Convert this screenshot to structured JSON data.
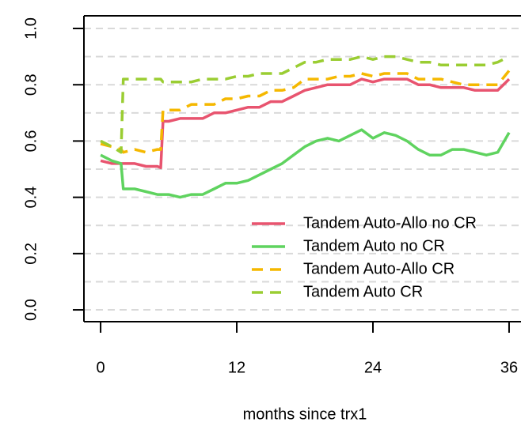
{
  "chart_data": {
    "type": "line",
    "x": [
      0,
      1,
      1.8,
      2,
      3,
      4,
      5,
      5.3,
      5.5,
      6,
      7,
      8,
      9,
      10,
      11,
      12,
      13,
      14,
      15,
      16,
      17,
      18,
      19,
      20,
      21,
      22,
      23,
      24,
      25,
      26,
      27,
      28,
      29,
      30,
      31,
      32,
      33,
      34,
      35,
      36
    ],
    "series": [
      {
        "name": "Tandem Auto-Allo no CR",
        "color": "#e8546f",
        "linestyle": "solid",
        "values": [
          0.53,
          0.52,
          0.52,
          0.52,
          0.52,
          0.51,
          0.51,
          0.505,
          0.67,
          0.67,
          0.68,
          0.68,
          0.68,
          0.7,
          0.7,
          0.71,
          0.72,
          0.72,
          0.74,
          0.74,
          0.76,
          0.78,
          0.79,
          0.8,
          0.8,
          0.8,
          0.82,
          0.81,
          0.82,
          0.82,
          0.82,
          0.8,
          0.8,
          0.79,
          0.79,
          0.79,
          0.78,
          0.78,
          0.78,
          0.82
        ]
      },
      {
        "name": "Tandem Auto no CR",
        "color": "#5fd35f",
        "linestyle": "solid",
        "values": [
          0.55,
          0.53,
          0.52,
          0.43,
          0.43,
          0.42,
          0.41,
          0.41,
          0.41,
          0.41,
          0.4,
          0.41,
          0.41,
          0.43,
          0.45,
          0.45,
          0.46,
          0.48,
          0.5,
          0.52,
          0.55,
          0.58,
          0.6,
          0.61,
          0.6,
          0.62,
          0.64,
          0.61,
          0.63,
          0.62,
          0.6,
          0.57,
          0.55,
          0.55,
          0.57,
          0.57,
          0.56,
          0.55,
          0.56,
          0.63
        ]
      },
      {
        "name": "Tandem Auto-Allo CR",
        "color": "#f5b800",
        "linestyle": "dashed",
        "values": [
          0.59,
          0.58,
          0.57,
          0.56,
          0.57,
          0.56,
          0.57,
          0.57,
          0.71,
          0.71,
          0.71,
          0.73,
          0.73,
          0.73,
          0.75,
          0.75,
          0.76,
          0.76,
          0.78,
          0.78,
          0.79,
          0.82,
          0.82,
          0.82,
          0.83,
          0.83,
          0.84,
          0.83,
          0.84,
          0.84,
          0.84,
          0.82,
          0.82,
          0.82,
          0.81,
          0.8,
          0.8,
          0.8,
          0.8,
          0.85
        ]
      },
      {
        "name": "Tandem Auto CR",
        "color": "#9acd32",
        "linestyle": "dashed",
        "values": [
          0.6,
          0.58,
          0.56,
          0.82,
          0.82,
          0.82,
          0.82,
          0.82,
          0.81,
          0.81,
          0.81,
          0.81,
          0.82,
          0.82,
          0.82,
          0.83,
          0.83,
          0.84,
          0.84,
          0.84,
          0.86,
          0.88,
          0.88,
          0.89,
          0.89,
          0.89,
          0.9,
          0.89,
          0.9,
          0.9,
          0.89,
          0.88,
          0.88,
          0.87,
          0.87,
          0.87,
          0.87,
          0.87,
          0.88,
          0.9
        ]
      }
    ],
    "x_label": "months since trx1",
    "xlim": [
      -1.47,
      37.05
    ],
    "xticks": [
      0,
      12,
      24,
      36
    ],
    "ylim": [
      -0.042,
      1.045
    ],
    "yticks": [
      {
        "value": 0,
        "label": "0.0"
      },
      0.2,
      0.4,
      0.6,
      0.8,
      {
        "value": 1,
        "label": "1.0"
      }
    ],
    "ygrid": [
      0,
      0.1,
      0.2,
      0.3,
      0.4,
      0.5,
      0.6,
      0.7,
      0.8,
      0.9,
      1
    ],
    "legend": "bottom-right"
  }
}
